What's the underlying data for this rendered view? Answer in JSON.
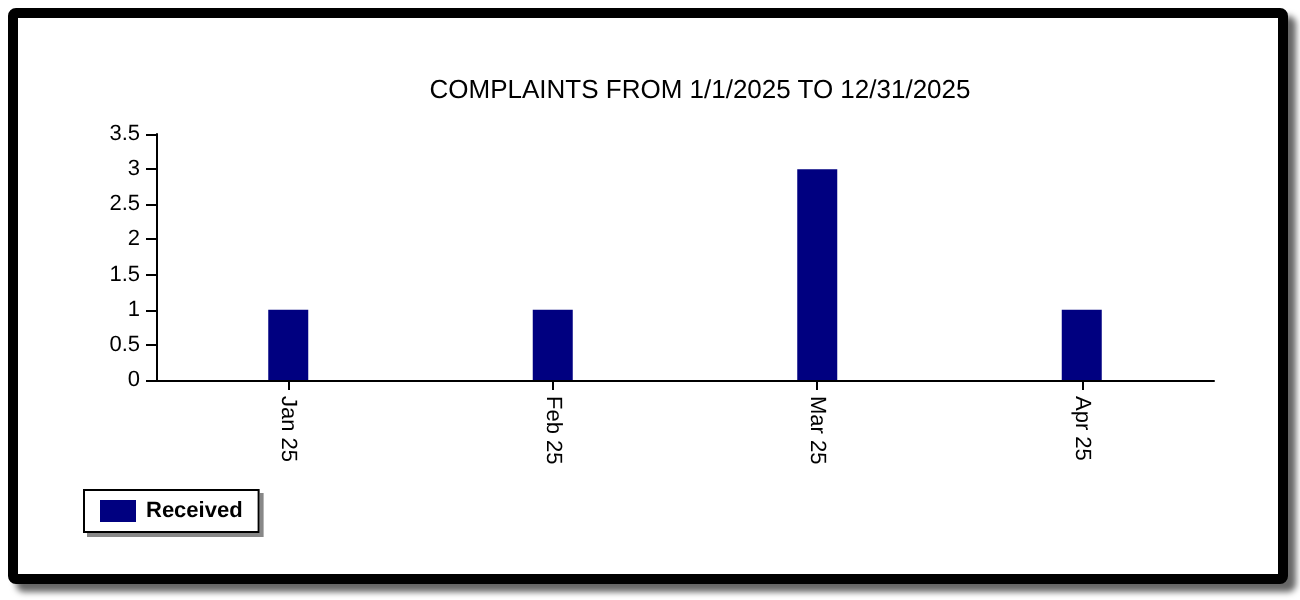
{
  "chart_data": {
    "type": "bar",
    "title": "COMPLAINTS FROM 1/1/2025 TO 12/31/2025",
    "categories": [
      "Jan 25",
      "Feb 25",
      "Mar 25",
      "Apr 25"
    ],
    "series": [
      {
        "name": "Received",
        "color": "#000080",
        "values": [
          1,
          1,
          3,
          1
        ]
      }
    ],
    "ylim": [
      0,
      3.5
    ],
    "yticks": [
      0,
      0.5,
      1,
      1.5,
      2,
      2.5,
      3,
      3.5
    ],
    "grid": false,
    "legend": "bottom left"
  }
}
